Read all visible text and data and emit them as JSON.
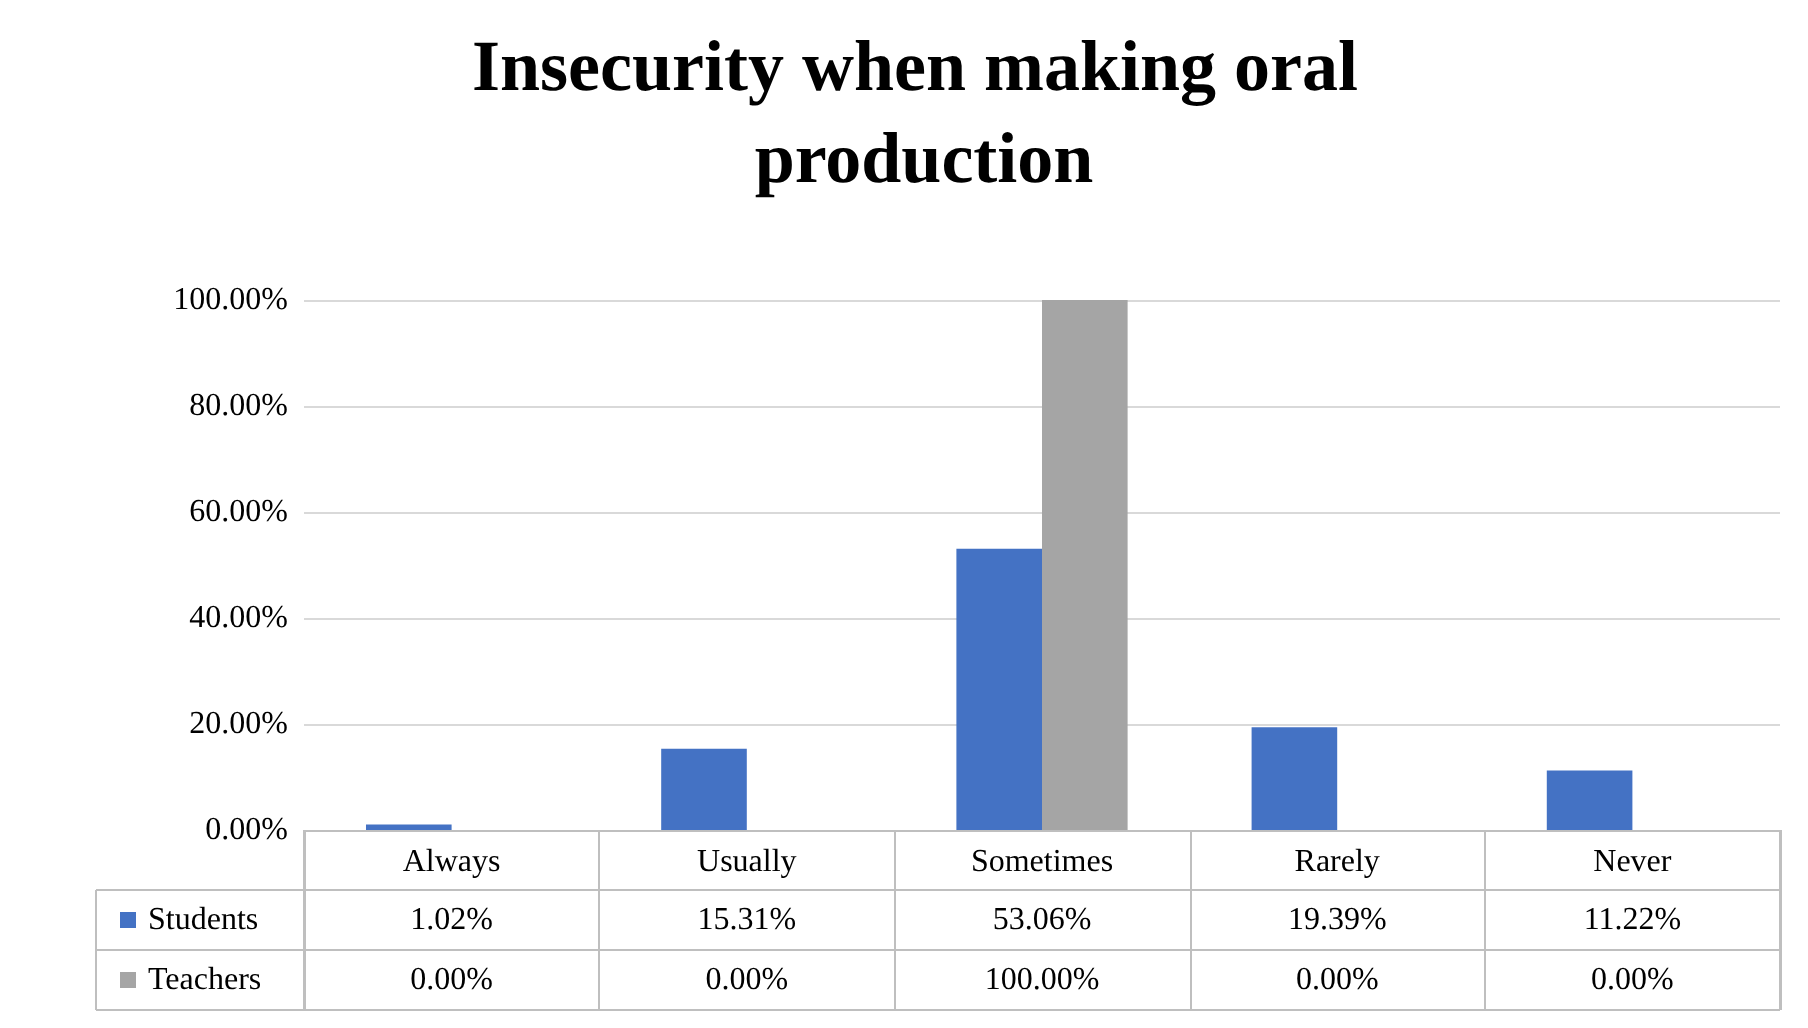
{
  "chart_data": {
    "type": "bar",
    "title": "Insecurity when making oral production",
    "categories": [
      "Always",
      "Usually",
      "Sometimes",
      "Rarely",
      "Never"
    ],
    "series": [
      {
        "name": "Students",
        "color": "#4472c4",
        "values": [
          1.02,
          15.31,
          53.06,
          19.39,
          11.22
        ],
        "value_labels": [
          "1.02%",
          "15.31%",
          "53.06%",
          "19.39%",
          "11.22%"
        ]
      },
      {
        "name": "Teachers",
        "color": "#a5a5a5",
        "values": [
          0,
          0,
          100,
          0,
          0
        ],
        "value_labels": [
          "0.00%",
          "0.00%",
          "100.00%",
          "0.00%",
          "0.00%"
        ]
      }
    ],
    "ylim": [
      0,
      100
    ],
    "yticks": [
      {
        "value": 0,
        "label": "0.00%"
      },
      {
        "value": 20,
        "label": "20.00%"
      },
      {
        "value": 40,
        "label": "40.00%"
      },
      {
        "value": 60,
        "label": "60.00%"
      },
      {
        "value": 80,
        "label": "80.00%"
      },
      {
        "value": 100,
        "label": "100.00%"
      }
    ],
    "grid": "y",
    "legend": "bottom left"
  }
}
